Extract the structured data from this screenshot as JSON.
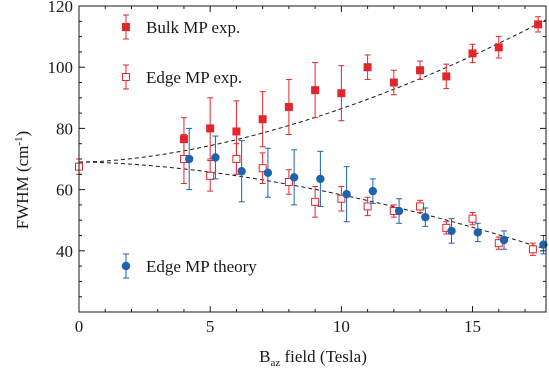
{
  "chart_data": {
    "type": "scatter",
    "xlabel": {
      "main": "B",
      "sub": "az",
      "rest": " field (Tesla)"
    },
    "ylabel": {
      "main": "FWHM (cm",
      "sup": "-1",
      "end": ")"
    },
    "xlim": [
      0,
      17.8
    ],
    "ylim": [
      20,
      120
    ],
    "xticks": [
      0,
      5,
      10,
      15
    ],
    "yticks": [
      40,
      60,
      80,
      100,
      120
    ],
    "x_minor_step": 1,
    "y_minor_step": 5,
    "grid": false,
    "legend_position": "top-left",
    "colors": {
      "bulk": "#e3262b",
      "edge_exp": "#e3262b",
      "theory": "#1e63ad",
      "fit": "#1a1a1a"
    },
    "series": [
      {
        "name": "Bulk MP exp.",
        "marker": "filled-square",
        "points": [
          {
            "x": 4,
            "y": 76.5,
            "err": 7
          },
          {
            "x": 5,
            "y": 80,
            "err": 10
          },
          {
            "x": 6,
            "y": 79,
            "err": 10
          },
          {
            "x": 7,
            "y": 83,
            "err": 9
          },
          {
            "x": 8,
            "y": 87,
            "err": 9
          },
          {
            "x": 9,
            "y": 92.5,
            "err": 9
          },
          {
            "x": 10,
            "y": 91.5,
            "err": 9
          },
          {
            "x": 11,
            "y": 100,
            "err": 4
          },
          {
            "x": 12,
            "y": 95,
            "err": 4
          },
          {
            "x": 13,
            "y": 99,
            "err": 3
          },
          {
            "x": 14,
            "y": 97,
            "err": 4
          },
          {
            "x": 15,
            "y": 104.5,
            "err": 3
          },
          {
            "x": 16,
            "y": 106.5,
            "err": 3.5
          },
          {
            "x": 17.5,
            "y": 114,
            "err": 2.5
          }
        ]
      },
      {
        "name": "Edge MP exp.",
        "marker": "open-square",
        "points": [
          {
            "x": 0,
            "y": 67.5,
            "err": 2.5
          },
          {
            "x": 4,
            "y": 70,
            "err": 8
          },
          {
            "x": 5,
            "y": 64.5,
            "err": 5
          },
          {
            "x": 6,
            "y": 70,
            "err": 5
          },
          {
            "x": 7,
            "y": 67,
            "err": 5
          },
          {
            "x": 8,
            "y": 62.5,
            "err": 4
          },
          {
            "x": 9,
            "y": 56,
            "err": 5
          },
          {
            "x": 10,
            "y": 57,
            "err": 4
          },
          {
            "x": 11,
            "y": 54.5,
            "err": 3
          },
          {
            "x": 12,
            "y": 53,
            "err": 2
          },
          {
            "x": 13,
            "y": 54.5,
            "err": 2
          },
          {
            "x": 14,
            "y": 47.5,
            "err": 2
          },
          {
            "x": 15,
            "y": 50.5,
            "err": 2
          },
          {
            "x": 16,
            "y": 42.5,
            "err": 2
          },
          {
            "x": 17.3,
            "y": 40.5,
            "err": 2
          }
        ]
      },
      {
        "name": "Edge MP theory",
        "marker": "filled-circle",
        "points": [
          {
            "x": 4.2,
            "y": 70,
            "err": 10
          },
          {
            "x": 5.2,
            "y": 70.5,
            "err": 7
          },
          {
            "x": 6.2,
            "y": 66,
            "err": 10
          },
          {
            "x": 7.2,
            "y": 65.5,
            "err": 8
          },
          {
            "x": 8.2,
            "y": 64,
            "err": 9
          },
          {
            "x": 9.2,
            "y": 63.5,
            "err": 9
          },
          {
            "x": 10.2,
            "y": 58.5,
            "err": 9
          },
          {
            "x": 11.2,
            "y": 59.5,
            "err": 4
          },
          {
            "x": 12.2,
            "y": 53,
            "err": 4
          },
          {
            "x": 13.2,
            "y": 51,
            "err": 3
          },
          {
            "x": 14.2,
            "y": 46.5,
            "err": 4
          },
          {
            "x": 15.2,
            "y": 46,
            "err": 3
          },
          {
            "x": 16.2,
            "y": 43.5,
            "err": 3
          },
          {
            "x": 17.7,
            "y": 42,
            "err": 3
          }
        ]
      }
    ],
    "fit_lines": [
      {
        "from": [
          0,
          69
        ],
        "to": [
          17.8,
          115.5
        ]
      },
      {
        "from": [
          0,
          69
        ],
        "to": [
          17.8,
          40.5
        ]
      }
    ]
  }
}
